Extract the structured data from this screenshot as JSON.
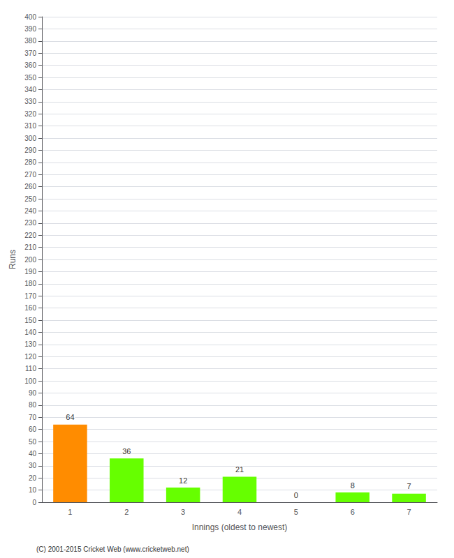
{
  "chart_data": {
    "type": "bar",
    "categories": [
      "1",
      "2",
      "3",
      "4",
      "5",
      "6",
      "7"
    ],
    "values": [
      64,
      36,
      12,
      21,
      0,
      8,
      7
    ],
    "colors": [
      "#FF8C00",
      "#66FF00",
      "#66FF00",
      "#66FF00",
      "#66FF00",
      "#66FF00",
      "#66FF00"
    ],
    "xlabel": "Innings (oldest to newest)",
    "ylabel": "Runs",
    "ylim": [
      0,
      400
    ],
    "yticks": [
      0,
      10,
      20,
      30,
      40,
      50,
      60,
      70,
      80,
      90,
      100,
      110,
      120,
      130,
      140,
      150,
      160,
      170,
      180,
      190,
      200,
      210,
      220,
      230,
      240,
      250,
      260,
      270,
      280,
      290,
      300,
      310,
      320,
      330,
      340,
      350,
      360,
      370,
      380,
      390,
      400
    ],
    "grid": true,
    "data_labels": true,
    "annotations": [
      "(C) 2001-2015 Cricket Web (www.cricketweb.net)"
    ]
  }
}
